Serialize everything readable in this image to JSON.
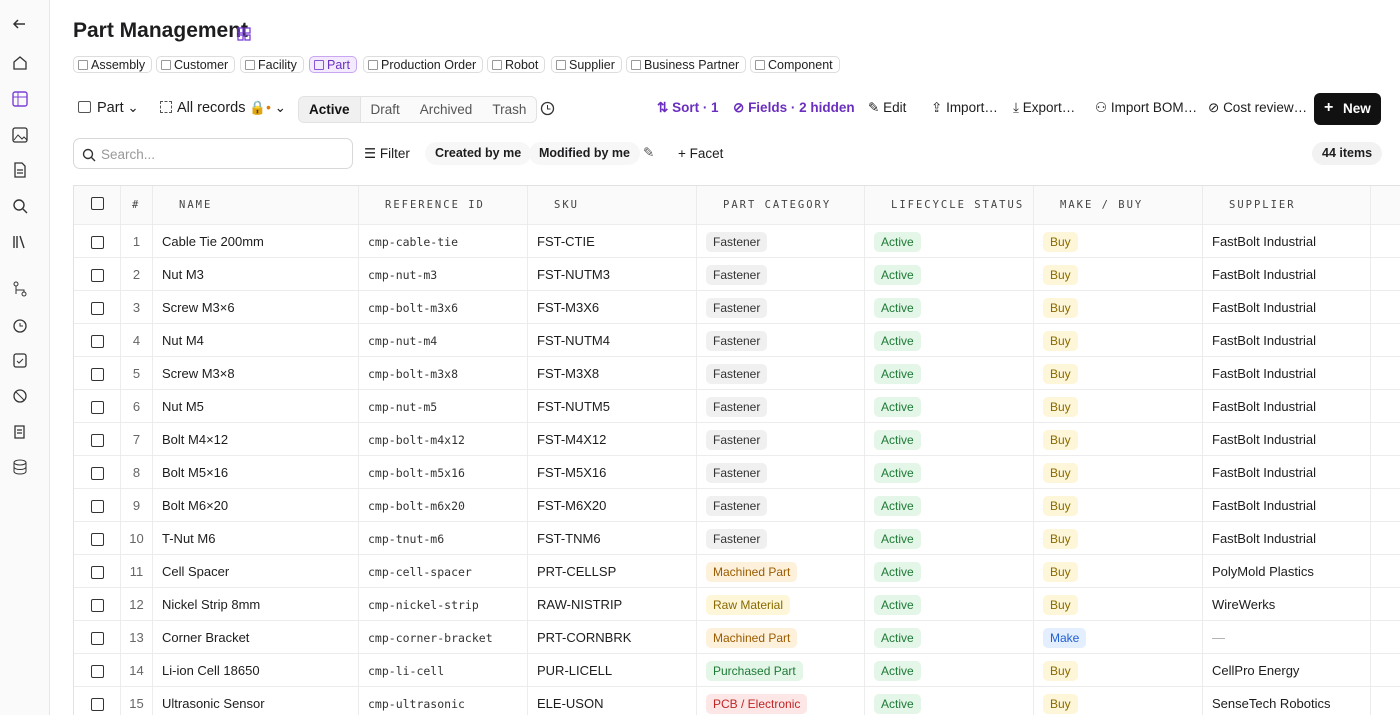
{
  "header": {
    "title": "Part Management"
  },
  "tabs": [
    "Assembly",
    "Customer",
    "Facility",
    "Part",
    "Production Order",
    "Robot",
    "Supplier",
    "Business Partner",
    "Component"
  ],
  "active_tab": 3,
  "toolbar": {
    "view": "Part",
    "records": "All records",
    "status_tabs": [
      "Active",
      "Draft",
      "Archived",
      "Trash"
    ],
    "active_status": 0,
    "sort": "Sort · 1",
    "fields": "Fields · 2 hidden",
    "edit": "Edit",
    "import": "Import…",
    "export": "Export…",
    "import_bom": "Import BOM…",
    "cost_review": "Cost review…",
    "new": "New"
  },
  "filters": {
    "search_placeholder": "Search...",
    "filter": "Filter",
    "created": "Created by me",
    "modified": "Modified by me",
    "facet": "Facet",
    "count": "44 items"
  },
  "table": {
    "columns": [
      "#",
      "NAME",
      "REFERENCE ID",
      "SKU",
      "PART CATEGORY",
      "LIFECYCLE STATUS",
      "MAKE / BUY",
      "SUPPLIER"
    ],
    "rows": [
      {
        "id": 1,
        "name": "Cable Tie 200mm",
        "reference_id": "cmp-cable-tie",
        "sku": "FST-CTIE",
        "category": {
          "label": "Fastener",
          "tone": "gray"
        },
        "lifecycle": "Active",
        "make_buy": {
          "label": "Buy",
          "tone": "yellow"
        },
        "supplier": "FastBolt Industrial"
      },
      {
        "id": 2,
        "name": "Nut M3",
        "reference_id": "cmp-nut-m3",
        "sku": "FST-NUTM3",
        "category": {
          "label": "Fastener",
          "tone": "gray"
        },
        "lifecycle": "Active",
        "make_buy": {
          "label": "Buy",
          "tone": "yellow"
        },
        "supplier": "FastBolt Industrial"
      },
      {
        "id": 3,
        "name": "Screw M3×6",
        "reference_id": "cmp-bolt-m3x6",
        "sku": "FST-M3X6",
        "category": {
          "label": "Fastener",
          "tone": "gray"
        },
        "lifecycle": "Active",
        "make_buy": {
          "label": "Buy",
          "tone": "yellow"
        },
        "supplier": "FastBolt Industrial"
      },
      {
        "id": 4,
        "name": "Nut M4",
        "reference_id": "cmp-nut-m4",
        "sku": "FST-NUTM4",
        "category": {
          "label": "Fastener",
          "tone": "gray"
        },
        "lifecycle": "Active",
        "make_buy": {
          "label": "Buy",
          "tone": "yellow"
        },
        "supplier": "FastBolt Industrial"
      },
      {
        "id": 5,
        "name": "Screw M3×8",
        "reference_id": "cmp-bolt-m3x8",
        "sku": "FST-M3X8",
        "category": {
          "label": "Fastener",
          "tone": "gray"
        },
        "lifecycle": "Active",
        "make_buy": {
          "label": "Buy",
          "tone": "yellow"
        },
        "supplier": "FastBolt Industrial"
      },
      {
        "id": 6,
        "name": "Nut M5",
        "reference_id": "cmp-nut-m5",
        "sku": "FST-NUTM5",
        "category": {
          "label": "Fastener",
          "tone": "gray"
        },
        "lifecycle": "Active",
        "make_buy": {
          "label": "Buy",
          "tone": "yellow"
        },
        "supplier": "FastBolt Industrial"
      },
      {
        "id": 7,
        "name": "Bolt M4×12",
        "reference_id": "cmp-bolt-m4x12",
        "sku": "FST-M4X12",
        "category": {
          "label": "Fastener",
          "tone": "gray"
        },
        "lifecycle": "Active",
        "make_buy": {
          "label": "Buy",
          "tone": "yellow"
        },
        "supplier": "FastBolt Industrial"
      },
      {
        "id": 8,
        "name": "Bolt M5×16",
        "reference_id": "cmp-bolt-m5x16",
        "sku": "FST-M5X16",
        "category": {
          "label": "Fastener",
          "tone": "gray"
        },
        "lifecycle": "Active",
        "make_buy": {
          "label": "Buy",
          "tone": "yellow"
        },
        "supplier": "FastBolt Industrial"
      },
      {
        "id": 9,
        "name": "Bolt M6×20",
        "reference_id": "cmp-bolt-m6x20",
        "sku": "FST-M6X20",
        "category": {
          "label": "Fastener",
          "tone": "gray"
        },
        "lifecycle": "Active",
        "make_buy": {
          "label": "Buy",
          "tone": "yellow"
        },
        "supplier": "FastBolt Industrial"
      },
      {
        "id": 10,
        "name": "T-Nut M6",
        "reference_id": "cmp-tnut-m6",
        "sku": "FST-TNM6",
        "category": {
          "label": "Fastener",
          "tone": "gray"
        },
        "lifecycle": "Active",
        "make_buy": {
          "label": "Buy",
          "tone": "yellow"
        },
        "supplier": "FastBolt Industrial"
      },
      {
        "id": 11,
        "name": "Cell Spacer",
        "reference_id": "cmp-cell-spacer",
        "sku": "PRT-CELLSP",
        "category": {
          "label": "Machined Part",
          "tone": "orange"
        },
        "lifecycle": "Active",
        "make_buy": {
          "label": "Buy",
          "tone": "yellow"
        },
        "supplier": "PolyMold Plastics"
      },
      {
        "id": 12,
        "name": "Nickel Strip 8mm",
        "reference_id": "cmp-nickel-strip",
        "sku": "RAW-NISTRIP",
        "category": {
          "label": "Raw Material",
          "tone": "yellow"
        },
        "lifecycle": "Active",
        "make_buy": {
          "label": "Buy",
          "tone": "yellow"
        },
        "supplier": "WireWerks"
      },
      {
        "id": 13,
        "name": "Corner Bracket",
        "reference_id": "cmp-corner-bracket",
        "sku": "PRT-CORNBRK",
        "category": {
          "label": "Machined Part",
          "tone": "orange"
        },
        "lifecycle": "Active",
        "make_buy": {
          "label": "Make",
          "tone": "blue"
        },
        "supplier": "—"
      },
      {
        "id": 14,
        "name": "Li-ion Cell 18650",
        "reference_id": "cmp-li-cell",
        "sku": "PUR-LICELL",
        "category": {
          "label": "Purchased Part",
          "tone": "green"
        },
        "lifecycle": "Active",
        "make_buy": {
          "label": "Buy",
          "tone": "yellow"
        },
        "supplier": "CellPro Energy"
      },
      {
        "id": 15,
        "name": "Ultrasonic Sensor",
        "reference_id": "cmp-ultrasonic",
        "sku": "ELE-USON",
        "category": {
          "label": "PCB / Electronic",
          "tone": "red"
        },
        "lifecycle": "Active",
        "make_buy": {
          "label": "Buy",
          "tone": "yellow"
        },
        "supplier": "SenseTech Robotics"
      }
    ]
  }
}
